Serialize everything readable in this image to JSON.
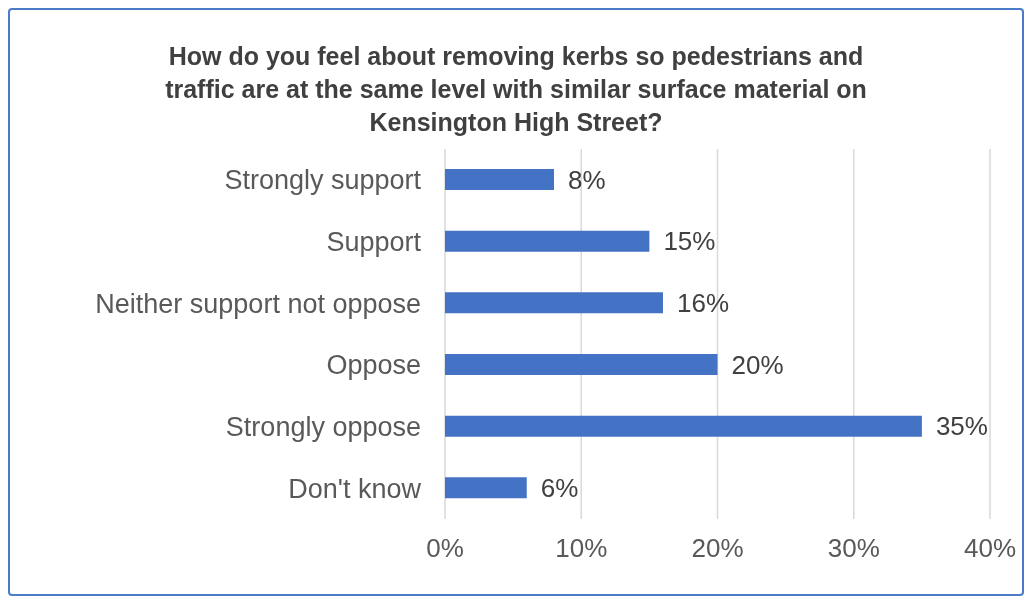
{
  "chart_data": {
    "type": "bar",
    "orientation": "horizontal",
    "title": "How do you feel about removing kerbs so pedestrians and traffic are at the same level with similar surface material on Kensington High Street?",
    "categories": [
      "Strongly support",
      "Support",
      "Neither support not oppose",
      "Oppose",
      "Strongly oppose",
      "Don't know"
    ],
    "values": [
      8,
      15,
      16,
      20,
      35,
      6
    ],
    "value_labels": [
      "8%",
      "15%",
      "16%",
      "20%",
      "35%",
      "6%"
    ],
    "color": "#4472c4",
    "xlim": [
      0,
      40
    ],
    "xticks": [
      {
        "value": 0,
        "label": "0%"
      },
      {
        "value": 10,
        "label": "10%"
      },
      {
        "value": 20,
        "label": "20%"
      },
      {
        "value": 30,
        "label": "30%"
      },
      {
        "value": 40,
        "label": "40%"
      }
    ],
    "grid": "x",
    "legend": false
  }
}
